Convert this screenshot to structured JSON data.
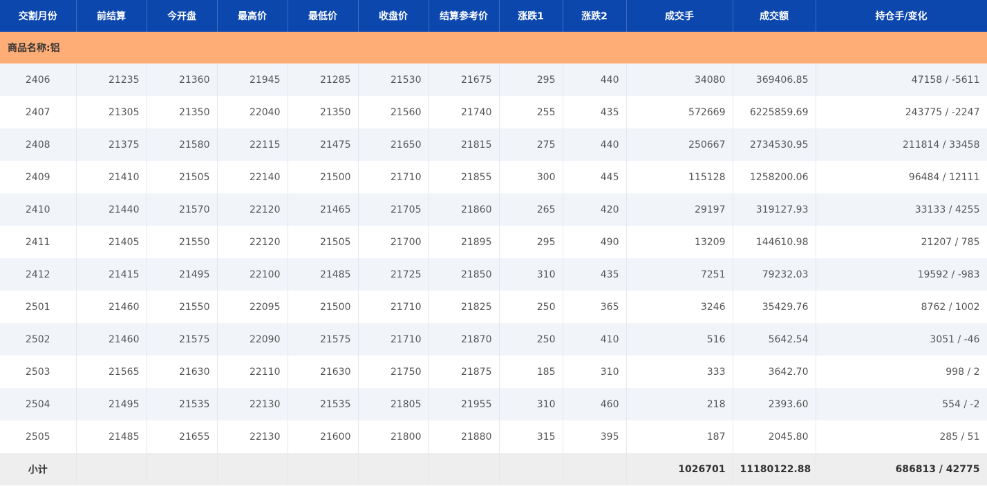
{
  "table": {
    "headers": [
      "交割月份",
      "前结算",
      "今开盘",
      "最高价",
      "最低价",
      "收盘价",
      "结算参考价",
      "涨跌1",
      "涨跌2",
      "成交手",
      "成交额",
      "持仓手/变化"
    ],
    "group": "商品名称:铝",
    "rows": [
      [
        "2406",
        "21235",
        "21360",
        "21945",
        "21285",
        "21530",
        "21675",
        "295",
        "440",
        "34080",
        "369406.85",
        "47158 / -5611"
      ],
      [
        "2407",
        "21305",
        "21350",
        "22040",
        "21350",
        "21560",
        "21740",
        "255",
        "435",
        "572669",
        "6225859.69",
        "243775 / -2247"
      ],
      [
        "2408",
        "21375",
        "21580",
        "22115",
        "21475",
        "21650",
        "21815",
        "275",
        "440",
        "250667",
        "2734530.95",
        "211814 / 33458"
      ],
      [
        "2409",
        "21410",
        "21505",
        "22140",
        "21500",
        "21710",
        "21855",
        "300",
        "445",
        "115128",
        "1258200.06",
        "96484 / 12111"
      ],
      [
        "2410",
        "21440",
        "21570",
        "22120",
        "21465",
        "21705",
        "21860",
        "265",
        "420",
        "29197",
        "319127.93",
        "33133 / 4255"
      ],
      [
        "2411",
        "21405",
        "21550",
        "22120",
        "21505",
        "21700",
        "21895",
        "295",
        "490",
        "13209",
        "144610.98",
        "21207 / 785"
      ],
      [
        "2412",
        "21415",
        "21495",
        "22100",
        "21485",
        "21725",
        "21850",
        "310",
        "435",
        "7251",
        "79232.03",
        "19592 / -983"
      ],
      [
        "2501",
        "21460",
        "21550",
        "22095",
        "21500",
        "21710",
        "21825",
        "250",
        "365",
        "3246",
        "35429.76",
        "8762 / 1002"
      ],
      [
        "2502",
        "21460",
        "21575",
        "22090",
        "21575",
        "21710",
        "21870",
        "250",
        "410",
        "516",
        "5642.54",
        "3051 / -46"
      ],
      [
        "2503",
        "21565",
        "21630",
        "22110",
        "21630",
        "21750",
        "21875",
        "185",
        "310",
        "333",
        "3642.70",
        "998 / 2"
      ],
      [
        "2504",
        "21495",
        "21535",
        "22130",
        "21535",
        "21805",
        "21955",
        "310",
        "460",
        "218",
        "2393.60",
        "554 / -2"
      ],
      [
        "2505",
        "21485",
        "21655",
        "22130",
        "21600",
        "21800",
        "21880",
        "315",
        "395",
        "187",
        "2045.80",
        "285 / 51"
      ]
    ],
    "subtotal": {
      "label": "小计",
      "volume": "1026701",
      "turnover": "11180122.88",
      "open_interest": "686813 / 42775"
    }
  }
}
